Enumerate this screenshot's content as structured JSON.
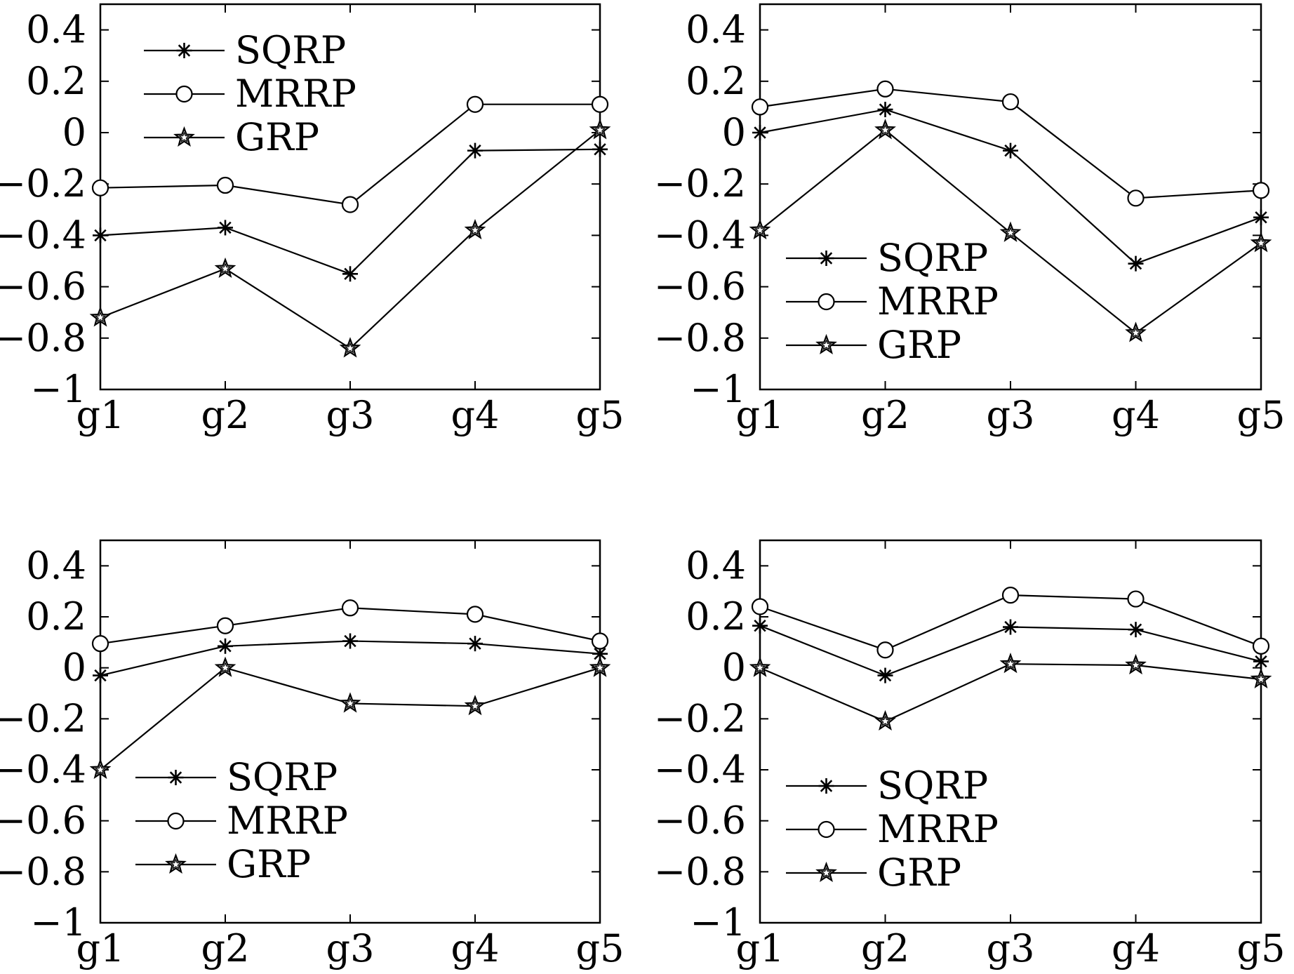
{
  "chart_data": [
    {
      "type": "line",
      "categories": [
        "g1",
        "g2",
        "g3",
        "g4",
        "g5"
      ],
      "ylim": [
        -1,
        0.5
      ],
      "yticks": [
        -1,
        -0.8,
        -0.6,
        -0.4,
        -0.2,
        0,
        0.2,
        0.4
      ],
      "ytick_labels": [
        "−1",
        "−0.8",
        "−0.6",
        "−0.4",
        "−0.2",
        "0",
        "0.2",
        "0.4"
      ],
      "grid": false,
      "legend_position": "top-left",
      "series": [
        {
          "name": "SQRP",
          "marker": "asterisk",
          "values": [
            -0.4,
            -0.37,
            -0.55,
            -0.07,
            -0.065
          ]
        },
        {
          "name": "MRRP",
          "marker": "circle",
          "values": [
            -0.215,
            -0.205,
            -0.28,
            0.11,
            0.11
          ]
        },
        {
          "name": "GRP",
          "marker": "star",
          "values": [
            -0.72,
            -0.53,
            -0.84,
            -0.38,
            0.01
          ]
        }
      ]
    },
    {
      "type": "line",
      "categories": [
        "g1",
        "g2",
        "g3",
        "g4",
        "g5"
      ],
      "ylim": [
        -1,
        0.5
      ],
      "yticks": [
        -1,
        -0.8,
        -0.6,
        -0.4,
        -0.2,
        0,
        0.2,
        0.4
      ],
      "ytick_labels": [
        "−1",
        "−0.8",
        "−0.6",
        "−0.4",
        "−0.2",
        "0",
        "0.2",
        "0.4"
      ],
      "grid": false,
      "legend_position": "bottom-left",
      "series": [
        {
          "name": "SQRP",
          "marker": "asterisk",
          "values": [
            0.0,
            0.09,
            -0.07,
            -0.51,
            -0.33
          ]
        },
        {
          "name": "MRRP",
          "marker": "circle",
          "values": [
            0.1,
            0.17,
            0.12,
            -0.255,
            -0.225
          ]
        },
        {
          "name": "GRP",
          "marker": "star",
          "values": [
            -0.38,
            0.01,
            -0.39,
            -0.78,
            -0.43
          ]
        }
      ]
    },
    {
      "type": "line",
      "categories": [
        "g1",
        "g2",
        "g3",
        "g4",
        "g5"
      ],
      "ylim": [
        -1,
        0.5
      ],
      "yticks": [
        -1,
        -0.8,
        -0.6,
        -0.4,
        -0.2,
        0,
        0.2,
        0.4
      ],
      "ytick_labels": [
        "−1",
        "−0.8",
        "−0.6",
        "−0.4",
        "−0.2",
        "0",
        "0.2",
        "0.4"
      ],
      "grid": false,
      "legend_position": "bottom-left",
      "series": [
        {
          "name": "SQRP",
          "marker": "asterisk",
          "values": [
            -0.03,
            0.085,
            0.105,
            0.095,
            0.055
          ]
        },
        {
          "name": "MRRP",
          "marker": "circle",
          "values": [
            0.095,
            0.165,
            0.235,
            0.21,
            0.105
          ]
        },
        {
          "name": "GRP",
          "marker": "star",
          "values": [
            -0.4,
            0.0,
            -0.14,
            -0.15,
            0.0
          ]
        }
      ]
    },
    {
      "type": "line",
      "categories": [
        "g1",
        "g2",
        "g3",
        "g4",
        "g5"
      ],
      "ylim": [
        -1,
        0.5
      ],
      "yticks": [
        -1,
        -0.8,
        -0.6,
        -0.4,
        -0.2,
        0,
        0.2,
        0.4
      ],
      "ytick_labels": [
        "−1",
        "−0.8",
        "−0.6",
        "−0.4",
        "−0.2",
        "0",
        "0.2",
        "0.4"
      ],
      "grid": false,
      "legend_position": "bottom-left",
      "series": [
        {
          "name": "SQRP",
          "marker": "asterisk",
          "values": [
            0.165,
            -0.03,
            0.16,
            0.15,
            0.025
          ]
        },
        {
          "name": "MRRP",
          "marker": "circle",
          "values": [
            0.24,
            0.07,
            0.285,
            0.27,
            0.085
          ]
        },
        {
          "name": "GRP",
          "marker": "star",
          "values": [
            0.0,
            -0.21,
            0.015,
            0.01,
            -0.045
          ]
        }
      ]
    }
  ]
}
